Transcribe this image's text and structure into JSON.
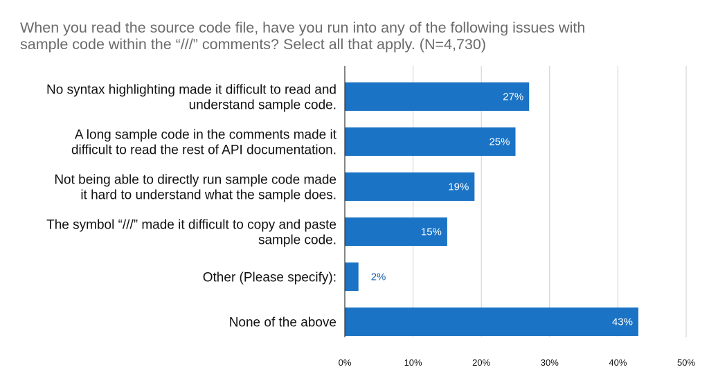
{
  "title_lines": [
    "When you read the source code file, have you run into any of the following issues with",
    "sample code within the “///” comments? Select all that apply. (N=4,730)"
  ],
  "chart_data": {
    "type": "bar",
    "orientation": "horizontal",
    "title": "When you read the source code file, have you run into any of the following issues with sample code within the “///” comments? Select all that apply. (N=4,730)",
    "categories": [
      [
        "No syntax highlighting made it difficult to read and",
        "understand sample code."
      ],
      [
        "A long sample code in the comments made it",
        "difficult to read the rest of API documentation."
      ],
      [
        "Not being able to directly run sample code made",
        "it hard to understand what the sample does."
      ],
      [
        "The symbol “///” made it difficult to copy and paste",
        "sample code."
      ],
      [
        "Other (Please specify):"
      ],
      [
        "None of the above"
      ]
    ],
    "values": [
      27,
      25,
      19,
      15,
      2,
      43
    ],
    "value_labels": [
      "27%",
      "25%",
      "19%",
      "15%",
      "2%",
      "43%"
    ],
    "xlim": [
      0,
      50
    ],
    "xticks": [
      "0%",
      "10%",
      "20%",
      "30%",
      "40%",
      "50%"
    ],
    "grid": true,
    "legend": "none",
    "colors": {
      "bar": "#1a73c4",
      "label_inside": "#ffffff",
      "label_outside": "#1a62a8",
      "grid": "#cccccc",
      "axis": "#333333",
      "title": "#6b6b6b"
    }
  }
}
